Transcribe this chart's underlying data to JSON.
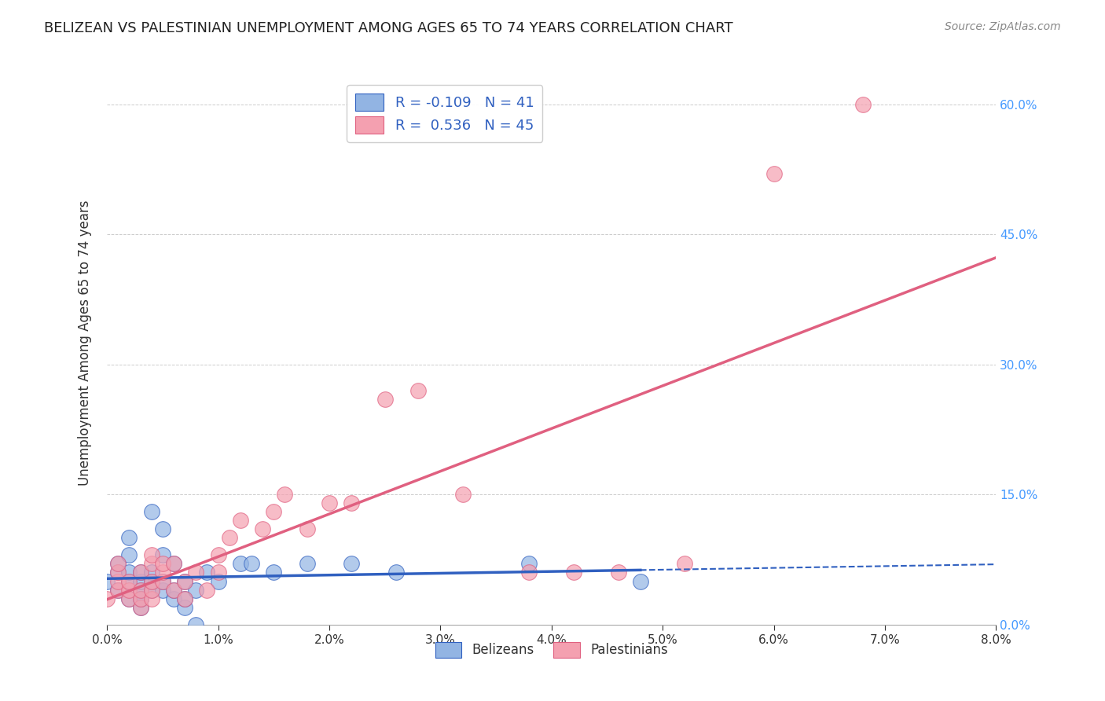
{
  "title": "BELIZEAN VS PALESTINIAN UNEMPLOYMENT AMONG AGES 65 TO 74 YEARS CORRELATION CHART",
  "source": "Source: ZipAtlas.com",
  "ylabel": "Unemployment Among Ages 65 to 74 years",
  "blue_label": "Belizeans",
  "pink_label": "Palestinians",
  "blue_R": -0.109,
  "blue_N": 41,
  "pink_R": 0.536,
  "pink_N": 45,
  "blue_color": "#92b4e3",
  "pink_color": "#f4a0b0",
  "blue_line_color": "#3060c0",
  "pink_line_color": "#e06080",
  "xlim": [
    0,
    0.08
  ],
  "ylim": [
    0,
    0.65
  ],
  "xticks": [
    0.0,
    0.01,
    0.02,
    0.03,
    0.04,
    0.05,
    0.06,
    0.07,
    0.08
  ],
  "yticks": [
    0.0,
    0.15,
    0.3,
    0.45,
    0.6
  ],
  "blue_scatter_x": [
    0.0,
    0.001,
    0.001,
    0.001,
    0.002,
    0.002,
    0.002,
    0.002,
    0.002,
    0.003,
    0.003,
    0.003,
    0.003,
    0.003,
    0.003,
    0.004,
    0.004,
    0.004,
    0.004,
    0.005,
    0.005,
    0.005,
    0.005,
    0.006,
    0.006,
    0.006,
    0.007,
    0.007,
    0.007,
    0.008,
    0.008,
    0.009,
    0.01,
    0.012,
    0.013,
    0.015,
    0.018,
    0.022,
    0.026,
    0.038,
    0.048
  ],
  "blue_scatter_y": [
    0.05,
    0.04,
    0.06,
    0.07,
    0.03,
    0.05,
    0.06,
    0.08,
    0.1,
    0.02,
    0.03,
    0.04,
    0.05,
    0.06,
    0.03,
    0.04,
    0.05,
    0.06,
    0.13,
    0.04,
    0.05,
    0.08,
    0.11,
    0.03,
    0.04,
    0.07,
    0.02,
    0.03,
    0.05,
    0.0,
    0.04,
    0.06,
    0.05,
    0.07,
    0.07,
    0.06,
    0.07,
    0.07,
    0.06,
    0.07,
    0.05
  ],
  "pink_scatter_x": [
    0.0,
    0.001,
    0.001,
    0.001,
    0.001,
    0.002,
    0.002,
    0.002,
    0.003,
    0.003,
    0.003,
    0.003,
    0.004,
    0.004,
    0.004,
    0.004,
    0.004,
    0.005,
    0.005,
    0.005,
    0.006,
    0.006,
    0.007,
    0.007,
    0.008,
    0.009,
    0.01,
    0.01,
    0.011,
    0.012,
    0.014,
    0.015,
    0.016,
    0.018,
    0.02,
    0.022,
    0.025,
    0.028,
    0.032,
    0.038,
    0.042,
    0.046,
    0.052,
    0.06,
    0.068
  ],
  "pink_scatter_y": [
    0.03,
    0.04,
    0.05,
    0.06,
    0.07,
    0.03,
    0.04,
    0.05,
    0.02,
    0.03,
    0.04,
    0.06,
    0.03,
    0.04,
    0.05,
    0.07,
    0.08,
    0.05,
    0.06,
    0.07,
    0.04,
    0.07,
    0.03,
    0.05,
    0.06,
    0.04,
    0.06,
    0.08,
    0.1,
    0.12,
    0.11,
    0.13,
    0.15,
    0.11,
    0.14,
    0.14,
    0.26,
    0.27,
    0.15,
    0.06,
    0.06,
    0.06,
    0.07,
    0.52,
    0.6
  ],
  "background_color": "#ffffff",
  "grid_color": "#cccccc",
  "legend_text_color": "#3060c0",
  "right_tick_color": "#4499ff"
}
